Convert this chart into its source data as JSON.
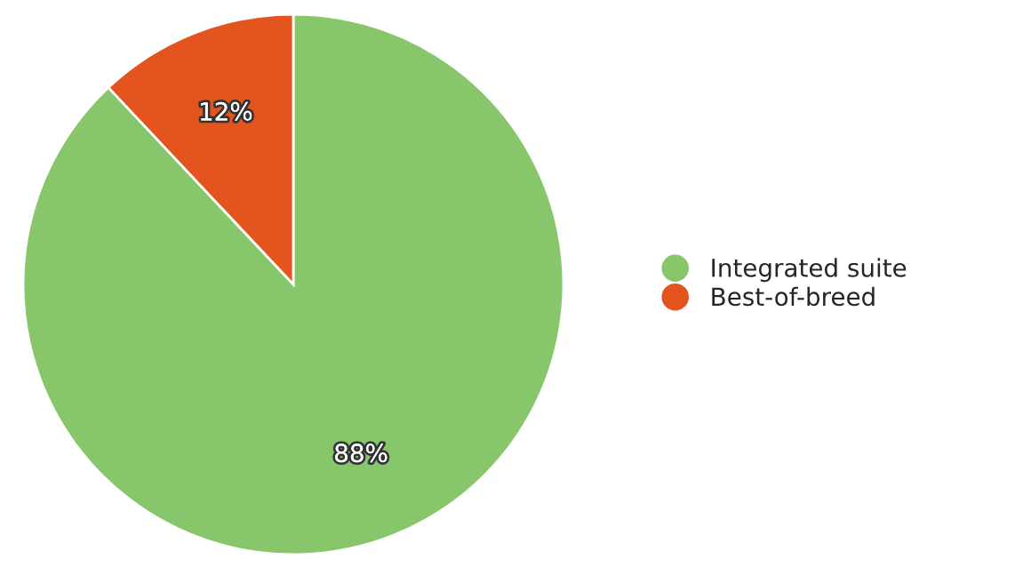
{
  "chart_data": {
    "type": "pie",
    "categories": [
      "Integrated suite",
      "Best-of-breed"
    ],
    "values": [
      88,
      12
    ],
    "colors": [
      "#88c66b",
      "#e4541f"
    ],
    "value_labels": [
      "88%",
      "12%"
    ],
    "legend": "right"
  }
}
